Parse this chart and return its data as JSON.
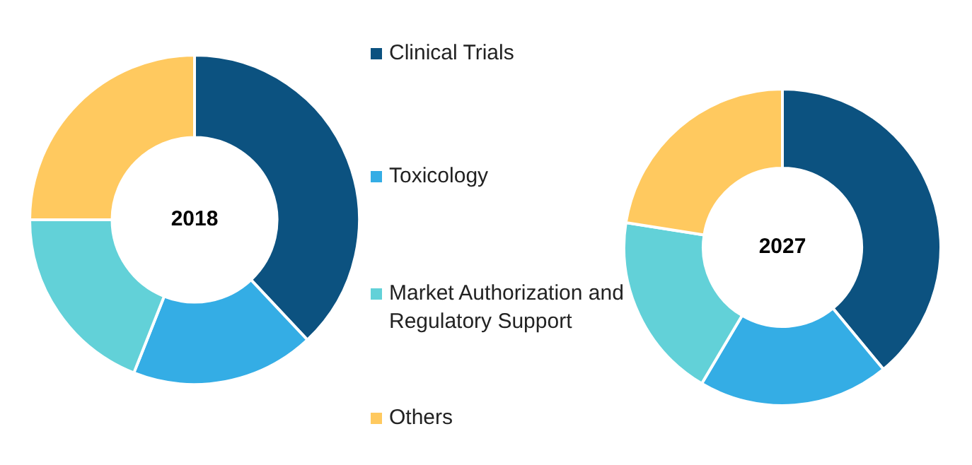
{
  "chart_data": {
    "type": "donut",
    "categories": [
      "Clinical Trials",
      "Toxicology",
      "Market Authorization and Regulatory Support",
      "Others"
    ],
    "colors": [
      "#0c5280",
      "#34ade5",
      "#62d1d8",
      "#ffc95f"
    ],
    "legend": "right",
    "series": [
      {
        "name": "2018",
        "values": [
          38,
          18,
          19,
          25
        ]
      },
      {
        "name": "2027",
        "values": [
          39,
          19.5,
          19,
          22.5
        ]
      }
    ]
  }
}
